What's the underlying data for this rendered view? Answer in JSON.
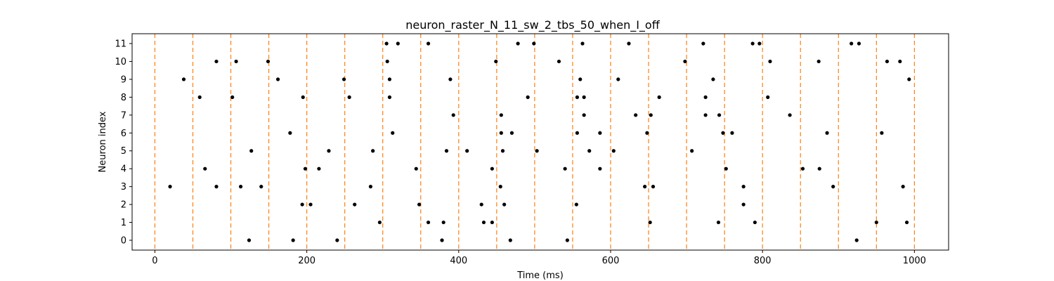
{
  "chart_data": {
    "type": "scatter",
    "title": "neuron_raster_N_11_sw_2_tbs_50_when_I_off",
    "xlabel": "Time (ms)",
    "ylabel": "Neuron index",
    "xlim": [
      -30,
      1045
    ],
    "ylim": [
      -0.55,
      11.55
    ],
    "xticks": [
      0,
      200,
      400,
      600,
      800,
      1000
    ],
    "yticks": [
      0,
      1,
      2,
      3,
      4,
      5,
      6,
      7,
      8,
      9,
      10,
      11
    ],
    "grid": false,
    "marker_color": "#000000",
    "vlines": {
      "color": "#ff7f0e",
      "style": "dashed",
      "x": [
        0,
        50,
        100,
        150,
        200,
        250,
        300,
        350,
        400,
        450,
        500,
        550,
        600,
        650,
        700,
        750,
        800,
        850,
        900,
        950,
        1000
      ]
    },
    "spikes": [
      {
        "neuron": 0,
        "times": [
          124,
          182,
          240,
          378,
          468,
          543,
          924
        ]
      },
      {
        "neuron": 1,
        "times": [
          296,
          360,
          380,
          433,
          444,
          652,
          742,
          790,
          950,
          990
        ]
      },
      {
        "neuron": 2,
        "times": [
          194,
          205,
          263,
          348,
          430,
          460,
          555,
          775
        ]
      },
      {
        "neuron": 3,
        "times": [
          20,
          81,
          113,
          140,
          284,
          455,
          645,
          656,
          775,
          893,
          985
        ]
      },
      {
        "neuron": 4,
        "times": [
          66,
          198,
          216,
          344,
          444,
          540,
          586,
          752,
          853,
          875
        ]
      },
      {
        "neuron": 5,
        "times": [
          127,
          229,
          287,
          384,
          411,
          458,
          503,
          572,
          604,
          707
        ]
      },
      {
        "neuron": 6,
        "times": [
          178,
          313,
          456,
          470,
          556,
          586,
          648,
          748,
          760,
          885,
          957
        ]
      },
      {
        "neuron": 7,
        "times": [
          393,
          456,
          565,
          633,
          653,
          725,
          743,
          836
        ]
      },
      {
        "neuron": 8,
        "times": [
          59,
          102,
          195,
          256,
          309,
          491,
          556,
          565,
          664,
          725,
          807
        ]
      },
      {
        "neuron": 9,
        "times": [
          38,
          162,
          249,
          309,
          389,
          560,
          610,
          735,
          993
        ]
      },
      {
        "neuron": 10,
        "times": [
          81,
          107,
          149,
          306,
          449,
          532,
          698,
          810,
          874,
          964,
          981
        ]
      },
      {
        "neuron": 11,
        "times": [
          305,
          320,
          360,
          478,
          499,
          563,
          624,
          722,
          787,
          796,
          917,
          927
        ]
      }
    ]
  }
}
